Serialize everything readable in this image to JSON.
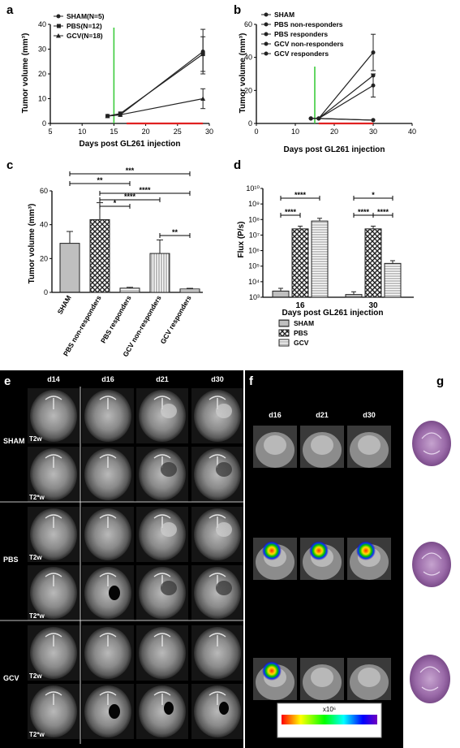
{
  "panels": {
    "a": "a",
    "b": "b",
    "c": "c",
    "d": "d",
    "e": "e",
    "f": "f",
    "g": "g"
  },
  "chart_a": {
    "type": "line",
    "ylabel": "Tumor volume (mm³)",
    "xlabel": "Days post GL261 injection",
    "xticks": [
      "5",
      "10",
      "15",
      "20",
      "25",
      "30"
    ],
    "yticks": [
      "0",
      "10",
      "20",
      "30",
      "40"
    ],
    "xlim": [
      5,
      30
    ],
    "ylim": [
      0,
      40
    ],
    "series": [
      {
        "name": "SHAM(N=5)",
        "marker": "circle",
        "x": [
          14,
          16,
          29
        ],
        "y": [
          3,
          3.5,
          29
        ]
      },
      {
        "name": "PBS(N=12)",
        "marker": "square",
        "x": [
          14,
          16,
          29
        ],
        "y": [
          3,
          4,
          28
        ]
      },
      {
        "name": "GCV(N=18)",
        "marker": "triangle",
        "x": [
          14,
          16,
          29
        ],
        "y": [
          3,
          3.5,
          10
        ]
      }
    ]
  },
  "chart_b": {
    "type": "line",
    "ylabel": "Tumor volume (mm³)",
    "xlabel": "Days post GL261 injection",
    "xticks": [
      "0",
      "10",
      "20",
      "30",
      "40"
    ],
    "yticks": [
      "0",
      "20",
      "40",
      "60"
    ],
    "xlim": [
      0,
      40
    ],
    "ylim": [
      0,
      60
    ],
    "series": [
      {
        "name": "SHAM",
        "x": [
          14,
          16,
          30
        ],
        "y": [
          3,
          3,
          29
        ]
      },
      {
        "name": "PBS non-responders",
        "x": [
          14,
          16,
          30
        ],
        "y": [
          3,
          3,
          43
        ]
      },
      {
        "name": "PBS responders",
        "x": [
          14,
          16,
          30
        ],
        "y": [
          3,
          3,
          2
        ]
      },
      {
        "name": "GCV non-responders",
        "x": [
          14,
          16,
          30
        ],
        "y": [
          3,
          3,
          23
        ]
      },
      {
        "name": "GCV responders",
        "x": [
          14,
          16,
          30
        ],
        "y": [
          3,
          3,
          2
        ]
      }
    ]
  },
  "chart_c": {
    "type": "bar",
    "ylabel": "Tumor volume (mm³)",
    "yticks": [
      "0",
      "20",
      "40",
      "60"
    ],
    "ylim": [
      0,
      60
    ],
    "categories": [
      "SHAM",
      "PBS non-responders",
      "PBS responders",
      "GCV non-responders",
      "GCV responders"
    ],
    "values": [
      29,
      43,
      2.5,
      23,
      2
    ],
    "errors": [
      7,
      10,
      0.5,
      8,
      0.4
    ],
    "significance": [
      "***",
      "**",
      "****",
      "****",
      "*",
      "**"
    ]
  },
  "chart_d": {
    "type": "bar",
    "ylabel": "Flux (P/s)",
    "xlabel": "Days post GL261 injection",
    "categories": [
      "16",
      "30"
    ],
    "yticks": [
      "10³",
      "10⁴",
      "10⁵",
      "10⁶",
      "10⁷",
      "10⁸",
      "10⁹",
      "10¹⁰"
    ],
    "log_scale": true,
    "series": [
      {
        "name": "SHAM",
        "values": [
          2500,
          1500
        ]
      },
      {
        "name": "PBS",
        "values": [
          25000000,
          25000000
        ]
      },
      {
        "name": "GCV",
        "values": [
          80000000,
          150000
        ]
      }
    ],
    "significance": [
      "****",
      "****",
      "*",
      "****",
      "****"
    ]
  },
  "panel_e": {
    "days": [
      "d14",
      "d16",
      "d21",
      "d30"
    ],
    "groups": [
      "SHAM",
      "PBS",
      "GCV"
    ],
    "seq1": "T2w",
    "seq2": "T2*w"
  },
  "panel_f": {
    "days": [
      "d16",
      "d21",
      "d30"
    ],
    "colorbar_label": "x10⁶"
  }
}
